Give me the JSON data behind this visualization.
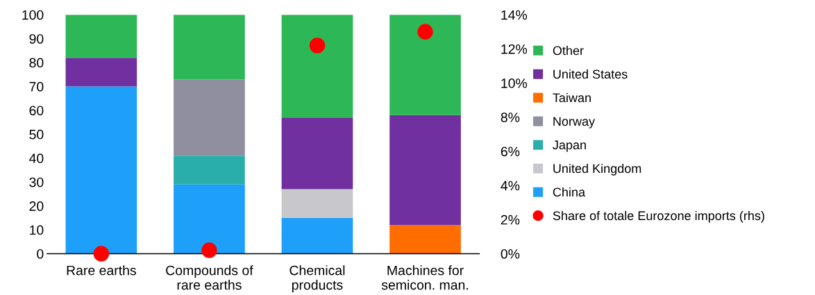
{
  "chart_data": {
    "type": "bar",
    "stacked": true,
    "categories": [
      "Rare earths",
      "Compounds of\nrare earths",
      "Chemical\nproducts",
      "Machines for\nsemicon. man."
    ],
    "series": [
      {
        "name": "China",
        "color": "#1e9ff9",
        "values": [
          70,
          29,
          15,
          null
        ]
      },
      {
        "name": "United Kingdom",
        "color": "#c8c8cc",
        "values": [
          null,
          null,
          12,
          null
        ]
      },
      {
        "name": "Japan",
        "color": "#2aaeac",
        "values": [
          null,
          12,
          null,
          null
        ]
      },
      {
        "name": "Norway",
        "color": "#8f8f9f",
        "values": [
          null,
          32,
          null,
          null
        ]
      },
      {
        "name": "Taiwan",
        "color": "#ff6d00",
        "values": [
          null,
          null,
          null,
          12
        ]
      },
      {
        "name": "United States",
        "color": "#7030a0",
        "values": [
          12,
          null,
          30,
          46
        ]
      },
      {
        "name": "Other",
        "color": "#2db757",
        "values": [
          18,
          27,
          43,
          42
        ]
      },
      {
        "name": "Share of totale Eurozone imports (rhs)",
        "type": "scatter",
        "axis": "y2",
        "marker": "circle",
        "color": "#ff0000",
        "values": [
          0,
          0.2,
          12.2,
          13.0
        ]
      }
    ],
    "ylim": [
      0,
      100
    ],
    "yticks": [
      0,
      10,
      20,
      30,
      40,
      50,
      60,
      70,
      80,
      90,
      100
    ],
    "y2lim": [
      0,
      14
    ],
    "y2ticks": [
      {
        "value": 0,
        "label": "0%"
      },
      {
        "value": 2,
        "label": "2%"
      },
      {
        "value": 4,
        "label": "4%"
      },
      {
        "value": 6,
        "label": "6%"
      },
      {
        "value": 8,
        "label": "8%"
      },
      {
        "value": 10,
        "label": "10%"
      },
      {
        "value": 12,
        "label": "12%"
      },
      {
        "value": 14,
        "label": "14%"
      }
    ],
    "grid": false,
    "legend": "right"
  }
}
